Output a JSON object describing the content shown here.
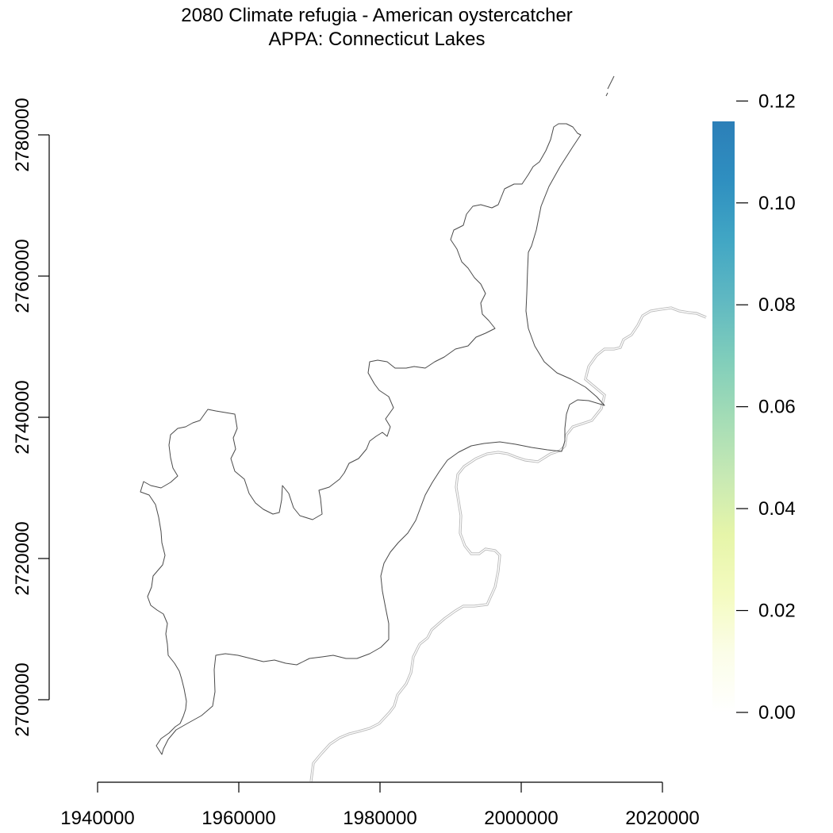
{
  "title": {
    "line1": "2080 Climate refugia - American oystercatcher",
    "line2": "APPA: Connecticut Lakes"
  },
  "map_data": {
    "x_axis": {
      "ticks": [
        1940000,
        1960000,
        1980000,
        2000000,
        2020000
      ],
      "tick_labels": [
        "1940000",
        "1960000",
        "1980000",
        "2000000",
        "2020000"
      ]
    },
    "y_axis": {
      "ticks": [
        2700000,
        2720000,
        2740000,
        2760000,
        2780000
      ],
      "tick_labels": [
        "2700000",
        "2720000",
        "2740000",
        "2760000",
        "2780000"
      ]
    },
    "legend": {
      "type": "continuous colorbar",
      "placement": "right",
      "min": 0.0,
      "max": 0.116,
      "ticks": [
        0.0,
        0.02,
        0.04,
        0.06,
        0.08,
        0.1,
        0.12
      ],
      "tick_labels": [
        "0.00",
        "0.02",
        "0.04",
        "0.06",
        "0.08",
        "0.10",
        "0.12"
      ],
      "colors": [
        "#ffffff",
        "#fbfde8",
        "#f4fbc0",
        "#e6f5a9",
        "#c7e9b4",
        "#a3dcb6",
        "#7fcdbb",
        "#5fb8c2",
        "#41a6c4",
        "#2f8fc0",
        "#2c7fb8"
      ]
    },
    "colors": {
      "outline": "#4a4a4a",
      "state_line": "#b8b8b8"
    }
  }
}
